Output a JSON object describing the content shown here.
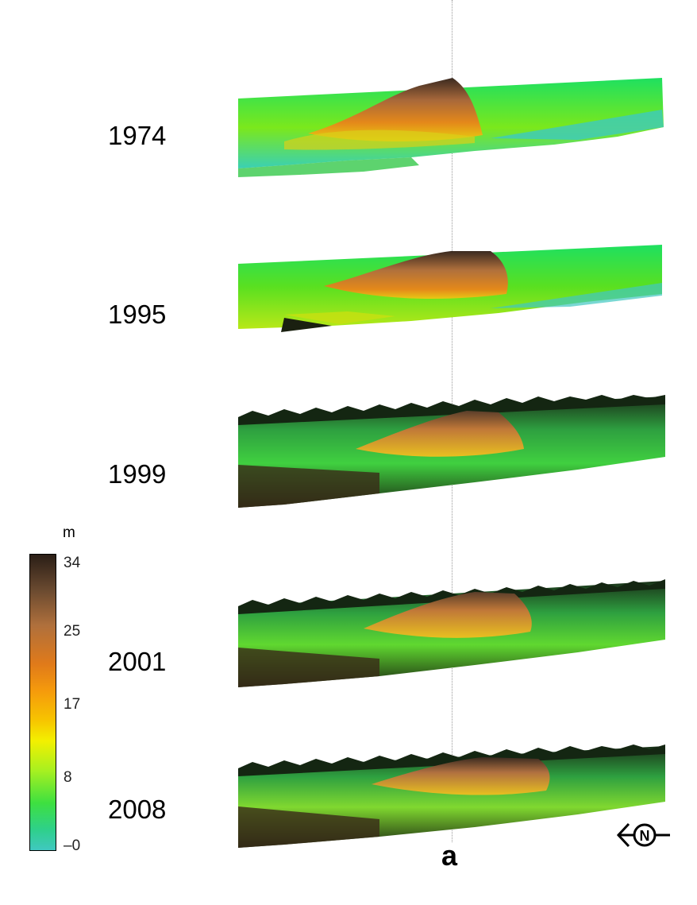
{
  "panels": [
    {
      "year": "1974",
      "kind": "bare"
    },
    {
      "year": "1995",
      "kind": "bare"
    },
    {
      "year": "1999",
      "kind": "forest"
    },
    {
      "year": "2001",
      "kind": "forest"
    },
    {
      "year": "2008",
      "kind": "forest"
    }
  ],
  "colorbar": {
    "unit": "m",
    "ticks": [
      "34",
      "25",
      "17",
      "8",
      "–0"
    ],
    "colors": [
      "#2a1e16",
      "#e07a1a",
      "#f3f000",
      "#3ee040",
      "#40c8c0"
    ]
  },
  "panel_label": "a",
  "north_arrow_symbol": "N",
  "icons": [
    "north-arrow-icon"
  ]
}
